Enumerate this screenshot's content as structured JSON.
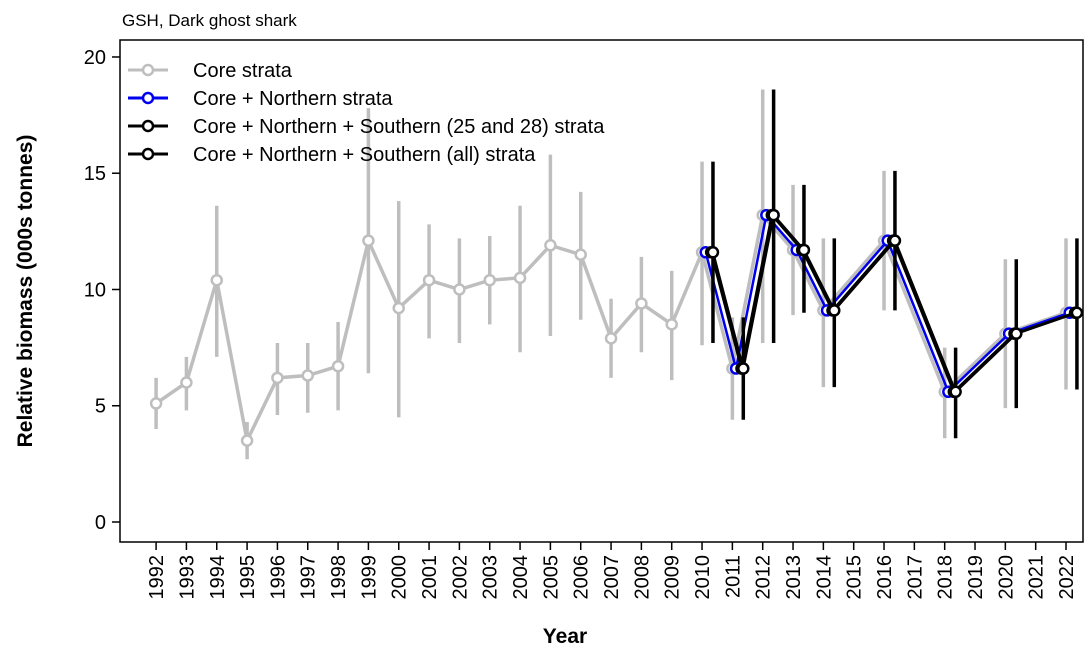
{
  "chart_data": {
    "type": "line",
    "title": "GSH, Dark ghost shark",
    "x_label": "Year",
    "y_label": "Relative biomass (000s tonnes)",
    "xlim": [
      1990.81,
      2022.56
    ],
    "ylim": [
      -0.86,
      20.73
    ],
    "xticks": [
      1992,
      1993,
      1994,
      1995,
      1996,
      1997,
      1998,
      1999,
      2000,
      2001,
      2002,
      2003,
      2004,
      2005,
      2006,
      2007,
      2008,
      2009,
      2010,
      2011,
      2012,
      2013,
      2014,
      2015,
      2016,
      2017,
      2018,
      2019,
      2020,
      2021,
      2022
    ],
    "yticks": [
      0,
      5,
      10,
      15,
      20
    ],
    "legend": "top-left",
    "series": [
      {
        "name": "Core strata",
        "color": "#bebebe",
        "x": [
          1992,
          1993,
          1994,
          1995,
          1996,
          1997,
          1998,
          1999,
          2000,
          2001,
          2002,
          2003,
          2004,
          2005,
          2006,
          2007,
          2008,
          2009,
          2010,
          2011,
          2012,
          2013,
          2014,
          2016,
          2018,
          2020,
          2022
        ],
        "values": [
          5.1,
          6.0,
          10.4,
          3.5,
          6.2,
          6.3,
          6.7,
          12.1,
          9.2,
          10.4,
          10.0,
          10.4,
          10.5,
          11.9,
          11.5,
          7.9,
          9.4,
          8.5,
          11.6,
          6.6,
          13.2,
          11.7,
          9.1,
          12.1,
          5.6,
          8.1,
          9.0
        ],
        "lower": [
          4.0,
          4.8,
          7.1,
          2.7,
          4.6,
          4.7,
          4.8,
          6.4,
          4.5,
          7.9,
          7.7,
          8.5,
          7.3,
          8.0,
          8.7,
          6.2,
          7.3,
          6.1,
          7.6,
          4.4,
          7.7,
          8.9,
          5.8,
          9.1,
          3.6,
          4.9,
          5.7
        ],
        "upper": [
          6.2,
          7.1,
          13.6,
          4.3,
          7.7,
          7.7,
          8.6,
          17.8,
          13.8,
          12.8,
          12.2,
          12.3,
          13.6,
          15.8,
          14.2,
          9.6,
          11.4,
          10.8,
          15.5,
          8.8,
          18.6,
          14.5,
          12.2,
          15.1,
          7.5,
          11.3,
          12.2
        ]
      },
      {
        "name": "Core + Northern strata",
        "color": "#0000ee",
        "x": [
          2010,
          2011,
          2012,
          2013,
          2014,
          2016,
          2018,
          2020,
          2022
        ],
        "values": [
          11.6,
          6.6,
          13.2,
          11.7,
          9.1,
          12.1,
          5.6,
          8.1,
          9.0
        ]
      },
      {
        "name": "Core + Northern + Southern (25 and 28) strata",
        "color": "#000000",
        "x": [
          2010,
          2011,
          2012,
          2013,
          2014,
          2016,
          2018,
          2020,
          2022
        ],
        "values": [
          11.6,
          6.6,
          13.2,
          11.7,
          9.1,
          12.1,
          5.6,
          8.1,
          9.0
        ]
      },
      {
        "name": "Core + Northern + Southern (all) strata",
        "color": "#000000",
        "x": [
          2010,
          2011,
          2012,
          2013,
          2014,
          2016,
          2018,
          2020,
          2022
        ],
        "values": [
          11.6,
          6.6,
          13.2,
          11.7,
          9.1,
          12.1,
          5.6,
          8.1,
          9.0
        ],
        "lower": [
          7.7,
          4.4,
          7.7,
          9.0,
          5.8,
          9.1,
          3.6,
          4.9,
          5.7
        ],
        "upper": [
          15.5,
          8.8,
          18.6,
          14.5,
          12.2,
          15.1,
          7.5,
          11.3,
          12.2
        ]
      }
    ]
  }
}
